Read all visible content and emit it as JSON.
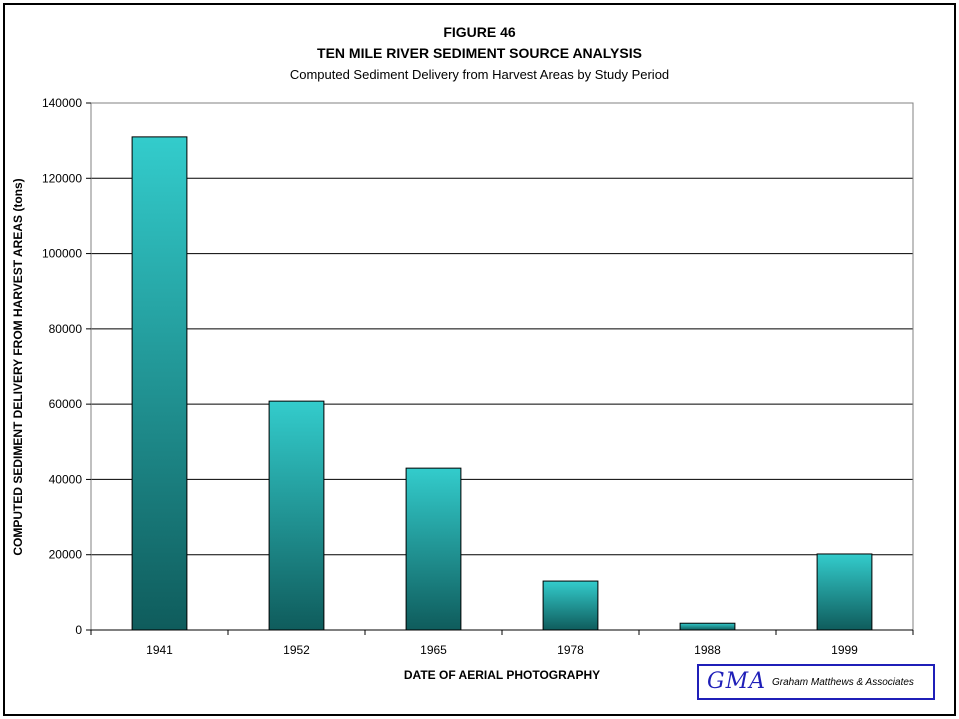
{
  "figure": {
    "title_line1": "FIGURE 46",
    "title_line2": "TEN MILE RIVER SEDIMENT SOURCE ANALYSIS",
    "subtitle": "Computed Sediment Delivery from Harvest Areas by Study Period"
  },
  "chart_data": {
    "type": "bar",
    "categories": [
      "1941",
      "1952",
      "1965",
      "1978",
      "1988",
      "1999"
    ],
    "values": [
      131000,
      60800,
      43000,
      13000,
      1800,
      20200
    ],
    "xlabel": "DATE OF AERIAL PHOTOGRAPHY",
    "ylabel": "COMPUTED SEDIMENT DELIVERY FROM HARVEST AREAS  (tons)",
    "ylim": [
      0,
      140000
    ],
    "yticks": [
      0,
      20000,
      40000,
      60000,
      80000,
      100000,
      120000,
      140000
    ],
    "grid": true,
    "colors": {
      "bar_top": "#33cccc",
      "bar_bottom": "#0f5c5c",
      "grid": "#000000"
    }
  },
  "logo": {
    "mark": "GMA",
    "name": "Graham Matthews & Associates",
    "color": "#1f1fb8"
  }
}
